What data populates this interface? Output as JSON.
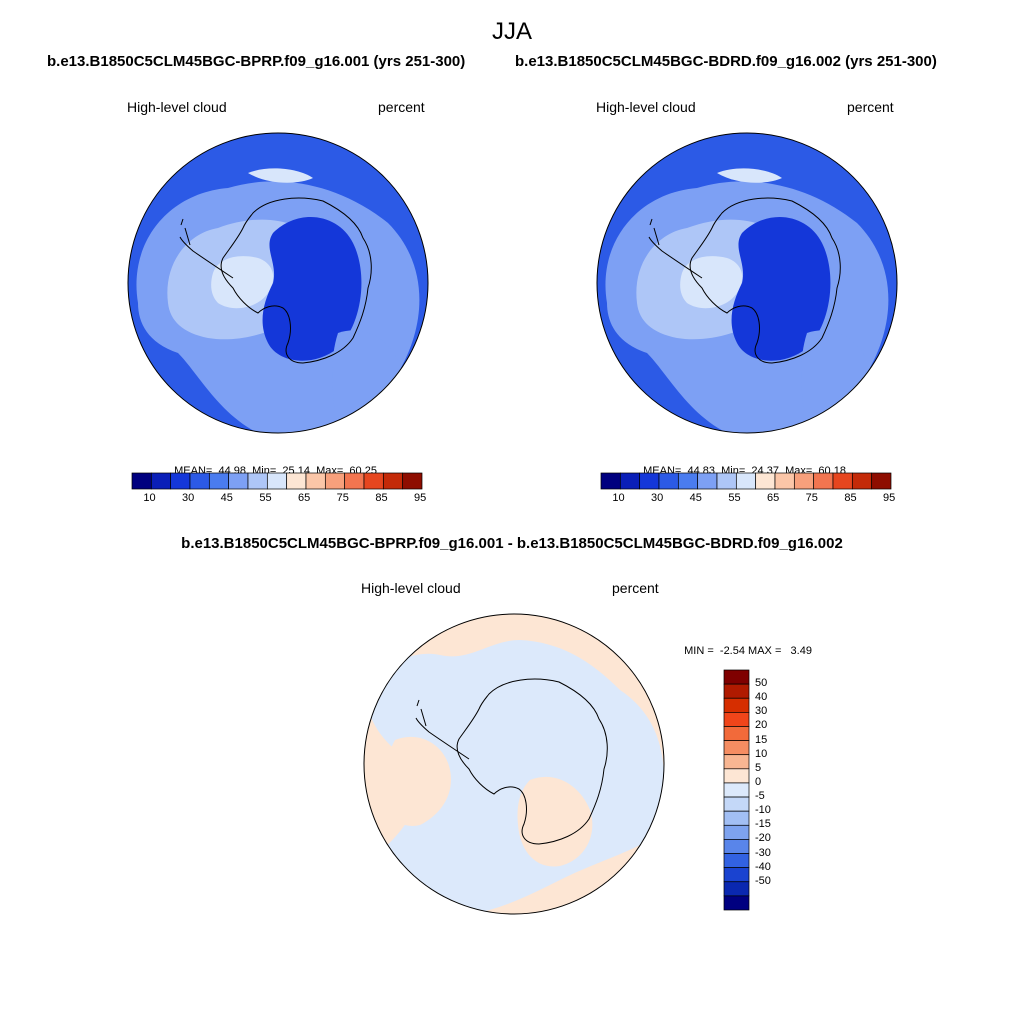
{
  "figure": {
    "season": "JJA",
    "case_a": "b.e13.B1850C5CLM45BGC-BPRP.f09_g16.001 (yrs 251-300)",
    "case_b": "b.e13.B1850C5CLM45BGC-BDRD.f09_g16.002 (yrs 251-300)",
    "diff_title": "b.e13.B1850C5CLM45BGC-BPRP.f09_g16.001 - b.e13.B1850C5CLM45BGC-BDRD.f09_g16.002"
  },
  "panels": [
    {
      "variable": "High-level cloud",
      "units": "percent",
      "stats": {
        "mean_label": "MEAN=",
        "mean": "44.98",
        "min_label": "Min=",
        "min": "25.14",
        "max_label": "Max=",
        "max": "60.25"
      }
    },
    {
      "variable": "High-level cloud",
      "units": "percent",
      "stats": {
        "mean_label": "MEAN=",
        "mean": "44.83",
        "min_label": "Min=",
        "min": "24.37",
        "max_label": "Max=",
        "max": "60.18"
      }
    },
    {
      "variable": "High-level cloud",
      "units": "percent",
      "stats": {
        "min_label": "MIN =",
        "min": "-2.54",
        "max_label": "MAX =",
        "max": "3.49"
      }
    }
  ],
  "colorbar_abs": {
    "tick_labels": [
      "10",
      "30",
      "45",
      "55",
      "65",
      "75",
      "85",
      "95"
    ],
    "colors": [
      "#00007f",
      "#0a1fb8",
      "#1437d9",
      "#2c5ae6",
      "#4a7cef",
      "#7da0f4",
      "#aec6f7",
      "#d8e6fb",
      "#fde6d4",
      "#fbc6a8",
      "#f7a07c",
      "#f27550",
      "#e6461f",
      "#c42a08",
      "#8e0d00"
    ]
  },
  "colorbar_diff": {
    "tick_labels": [
      "50",
      "40",
      "30",
      "20",
      "15",
      "10",
      "5",
      "0",
      "-5",
      "-10",
      "-15",
      "-20",
      "-30",
      "-40",
      "-50"
    ],
    "colors": [
      "#7f0000",
      "#b01a00",
      "#d62e00",
      "#f0451a",
      "#f26a3a",
      "#f58d62",
      "#f8b692",
      "#fde6d4",
      "#dce9fb",
      "#c4d8f8",
      "#a2bff4",
      "#7ea3ef",
      "#5985ea",
      "#3262e2",
      "#1a43d0",
      "#0a28b0",
      "#000080"
    ]
  },
  "map_colors": {
    "outer_ring": "#2c5ae6",
    "level_45_55": "#7da0f4",
    "level_55_65": "#aec6f7",
    "level_low": "#d8e6fb",
    "level_core": "#1437d9",
    "diff_positive": "#fde6d4",
    "diff_negative": "#dce9fb",
    "coast": "#000000"
  }
}
